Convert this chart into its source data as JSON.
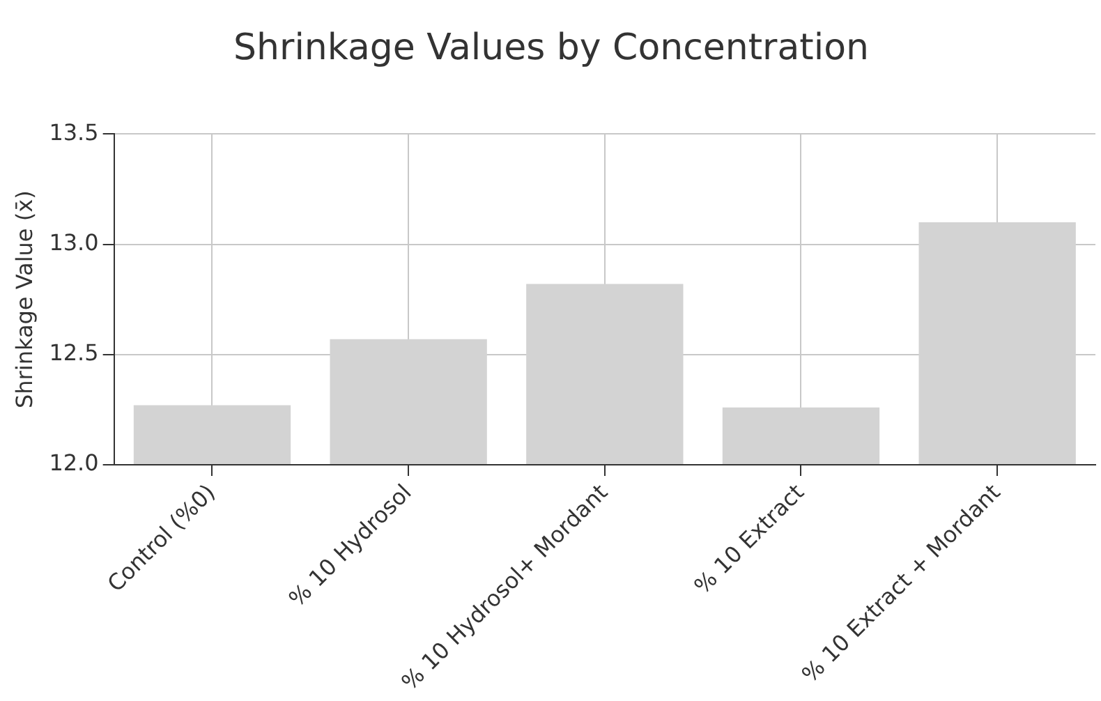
{
  "chart_data": {
    "type": "bar",
    "title": "Shrinkage Values by Concentration",
    "ylabel": "Shrinkage Value (x̄)",
    "categories": [
      "Control (%0)",
      "% 10 Hydrosol",
      "% 10 Hydrosol+ Mordant",
      "% 10 Extract",
      "% 10 Extract + Mordant"
    ],
    "values": [
      12.27,
      12.57,
      12.82,
      12.26,
      13.1
    ],
    "color": "#d3d3d3",
    "ylim": [
      12.0,
      13.5
    ],
    "yticks": [
      {
        "value": 12,
        "label": "12.0"
      },
      {
        "value": 12.5,
        "label": "12.5"
      },
      {
        "value": 13,
        "label": "13.0"
      },
      {
        "value": 13.5,
        "label": "13.5"
      }
    ],
    "grid": true
  }
}
